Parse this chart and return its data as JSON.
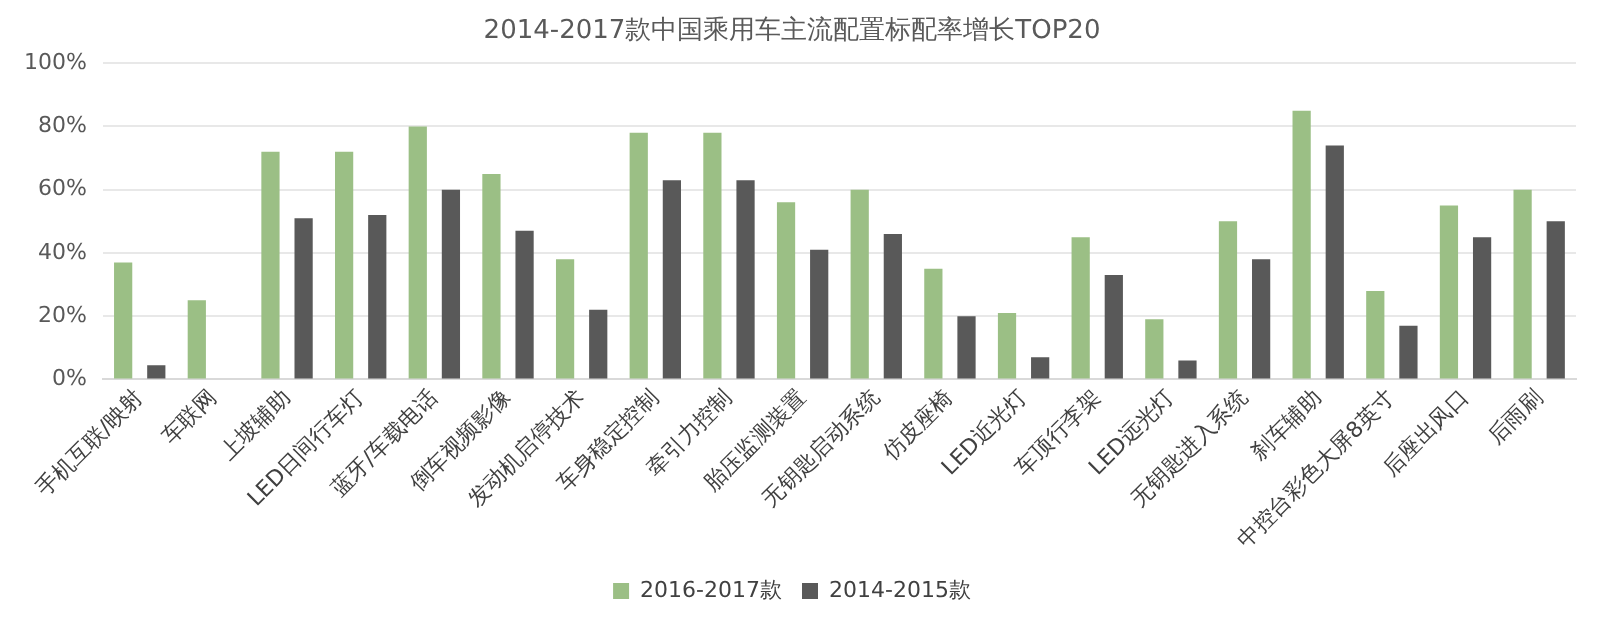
{
  "chart_data": {
    "type": "bar",
    "title": "2014-2017款中国乘用车主流配置标配率增长TOP20",
    "categories": [
      "手机互联/映射",
      "车联网",
      "上坡辅助",
      "LED日间行车灯",
      "蓝牙/车载电话",
      "倒车视频影像",
      "发动机启停技术",
      "车身稳定控制",
      "牵引力控制",
      "胎压监测装置",
      "无钥匙启动系统",
      "仿皮座椅",
      "LED近光灯",
      "车顶行李架",
      "LED远光灯",
      "无钥匙进入系统",
      "刹车辅助",
      "中控台彩色大屏8英寸",
      "后座出风口",
      "后雨刷"
    ],
    "series": [
      {
        "name": "2016-2017款",
        "color": "#9bbf85",
        "values": [
          37,
          25,
          72,
          72,
          80,
          65,
          38,
          78,
          78,
          56,
          60,
          35,
          21,
          45,
          19,
          50,
          85,
          28,
          55,
          60
        ]
      },
      {
        "name": "2014-2015款",
        "color": "#595959",
        "values": [
          4.5,
          null,
          51,
          52,
          60,
          47,
          22,
          63,
          63,
          41,
          46,
          20,
          7,
          33,
          6,
          38,
          74,
          17,
          45,
          50
        ]
      }
    ],
    "ylim": [
      0,
      100
    ],
    "yticks": [
      {
        "value": 0,
        "label": "0%"
      },
      {
        "value": 20,
        "label": "20%"
      },
      {
        "value": 40,
        "label": "40%"
      },
      {
        "value": 60,
        "label": "60%"
      },
      {
        "value": 80,
        "label": "80%"
      },
      {
        "value": 100,
        "label": "100%"
      }
    ],
    "grid": "y",
    "legend": "bottom"
  }
}
